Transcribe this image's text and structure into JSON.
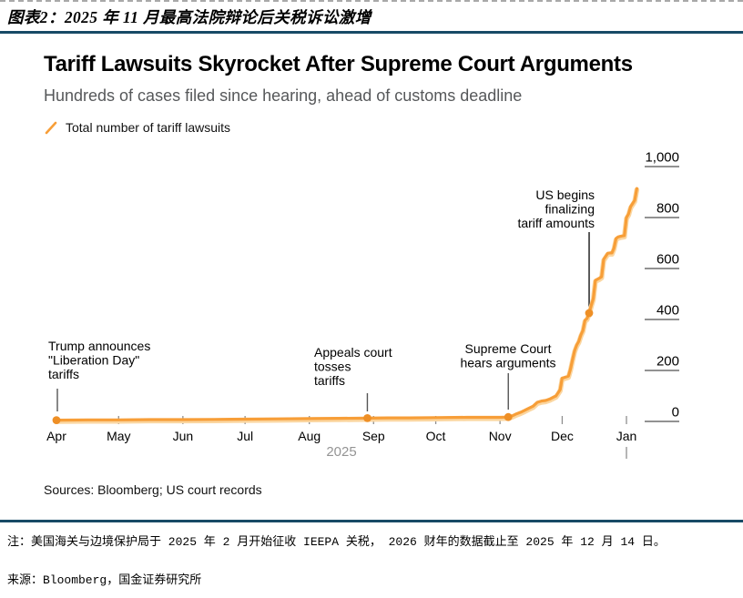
{
  "header": {
    "caption": "图表2：2025 年 11 月最高法院辩论后关税诉讼激增"
  },
  "chart": {
    "title": "Tariff Lawsuits Skyrocket After Supreme Court Arguments",
    "subtitle": "Hundreds of cases filed since hearing, ahead of customs deadline",
    "legend_label": "Total number of tariff lawsuits",
    "sources": "Sources: Bloomberg; US court records"
  },
  "footer": {
    "note": "注：美国海关与边境保护局于 2025 年 2 月开始征收 IEEPA 关税， 2026 财年的数据截止至 2025 年 12 月 14 日。",
    "source": "来源：Bloomberg，国金证券研究所"
  },
  "colors": {
    "line": "#f79e38",
    "line_halo": "#fbd6a0",
    "marker": "#ee8f26",
    "rule_navy": "#174a66",
    "axis_gray": "#8f8f8f",
    "year_gray": "#949494"
  },
  "chart_data": {
    "type": "line",
    "title": "Tariff Lawsuits Skyrocket After Supreme Court Arguments",
    "subtitle": "Hundreds of cases filed since hearing, ahead of customs deadline",
    "legend": [
      "Total number of tariff lawsuits"
    ],
    "ylim": [
      0,
      1000
    ],
    "grid": false,
    "legend_position": "top-left",
    "x_unit": "days since 2025-04-01",
    "x_axis": {
      "year_label": "2025",
      "ticks": [
        {
          "label": "Apr",
          "day": 0,
          "tick": false
        },
        {
          "label": "May",
          "day": 30,
          "tick": true
        },
        {
          "label": "Jun",
          "day": 61,
          "tick": true
        },
        {
          "label": "Jul",
          "day": 91,
          "tick": true
        },
        {
          "label": "Aug",
          "day": 122,
          "tick": true
        },
        {
          "label": "Sep",
          "day": 153,
          "tick": true
        },
        {
          "label": "Oct",
          "day": 183,
          "tick": true
        },
        {
          "label": "Nov",
          "day": 214,
          "tick": true
        },
        {
          "label": "Dec",
          "day": 244,
          "tick": true
        },
        {
          "label": "Jan",
          "day": 275,
          "tick": true
        }
      ]
    },
    "y_axis": {
      "ticks": [
        {
          "value": 0,
          "label": "0"
        },
        {
          "value": 200,
          "label": "200"
        },
        {
          "value": 400,
          "label": "400"
        },
        {
          "value": 600,
          "label": "600"
        },
        {
          "value": 800,
          "label": "800"
        },
        {
          "value": 1000,
          "label": "1,000"
        }
      ]
    },
    "series": [
      {
        "name": "Total number of tariff lawsuits",
        "points": [
          [
            0,
            5
          ],
          [
            15,
            6
          ],
          [
            30,
            6
          ],
          [
            45,
            7
          ],
          [
            61,
            7
          ],
          [
            76,
            8
          ],
          [
            91,
            9
          ],
          [
            107,
            10
          ],
          [
            122,
            11
          ],
          [
            136,
            12
          ],
          [
            150,
            13
          ],
          [
            160,
            14
          ],
          [
            170,
            14
          ],
          [
            183,
            15
          ],
          [
            198,
            16
          ],
          [
            210,
            16
          ],
          [
            214,
            16
          ],
          [
            218,
            17
          ],
          [
            220,
            22
          ],
          [
            222,
            30
          ],
          [
            224,
            36
          ],
          [
            226,
            44
          ],
          [
            228,
            52
          ],
          [
            230,
            60
          ],
          [
            232,
            75
          ],
          [
            234,
            80
          ],
          [
            236,
            82
          ],
          [
            238,
            88
          ],
          [
            240,
            96
          ],
          [
            241,
            100
          ],
          [
            242,
            112
          ],
          [
            243,
            125
          ],
          [
            244,
            170
          ],
          [
            245,
            172
          ],
          [
            246,
            175
          ],
          [
            247,
            178
          ],
          [
            248,
            205
          ],
          [
            249,
            243
          ],
          [
            250,
            278
          ],
          [
            251,
            300
          ],
          [
            252,
            314
          ],
          [
            253,
            339
          ],
          [
            254,
            357
          ],
          [
            255,
            397
          ],
          [
            256,
            404
          ],
          [
            257,
            425
          ],
          [
            258,
            455
          ],
          [
            259,
            482
          ],
          [
            260,
            554
          ],
          [
            261,
            558
          ],
          [
            262,
            562
          ],
          [
            263,
            568
          ],
          [
            264,
            636
          ],
          [
            265,
            648
          ],
          [
            266,
            660
          ],
          [
            267,
            661
          ],
          [
            268,
            661
          ],
          [
            269,
            680
          ],
          [
            270,
            718
          ],
          [
            271,
            724
          ],
          [
            272,
            726
          ],
          [
            273,
            728
          ],
          [
            274,
            729
          ],
          [
            275,
            800
          ],
          [
            276,
            814
          ],
          [
            277,
            843
          ],
          [
            278,
            855
          ],
          [
            279,
            868
          ],
          [
            280,
            914
          ]
        ],
        "markers": [
          [
            0,
            5
          ],
          [
            150,
            13
          ],
          [
            218,
            17
          ],
          [
            257,
            425
          ]
        ]
      }
    ],
    "annotations": [
      {
        "lines": [
          "Trump announces",
          "\"Liberation Day\"",
          "tariffs"
        ],
        "day": 0,
        "value": 5
      },
      {
        "lines": [
          "Appeals court",
          "tosses",
          "tariffs"
        ],
        "day": 150,
        "value": 13
      },
      {
        "lines": [
          "Supreme Court",
          "hears arguments"
        ],
        "day": 218,
        "value": 17
      },
      {
        "lines": [
          "US begins",
          "finalizing",
          "tariff amounts"
        ],
        "day": 257,
        "value": 425
      }
    ]
  }
}
